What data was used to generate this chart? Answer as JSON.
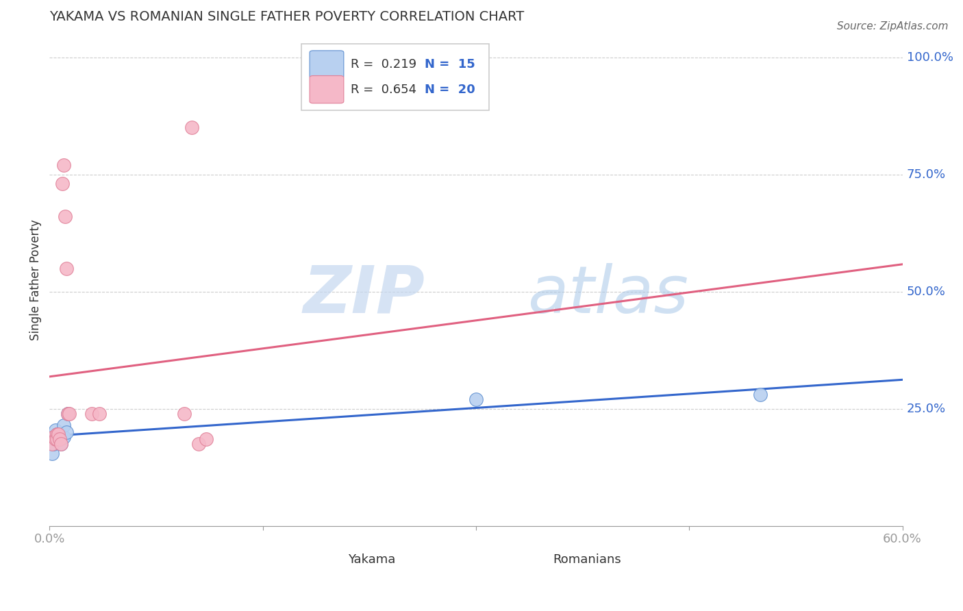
{
  "title": "YAKAMA VS ROMANIAN SINGLE FATHER POVERTY CORRELATION CHART",
  "source": "Source: ZipAtlas.com",
  "ylabel": "Single Father Poverty",
  "watermark_zip": "ZIP",
  "watermark_atlas": "atlas",
  "yakama": {
    "label": "Yakama",
    "color": "#b8d0f0",
    "edge_color": "#6090d0",
    "line_color": "#3366cc",
    "R": 0.219,
    "N": 15,
    "x": [
      0.002,
      0.003,
      0.004,
      0.005,
      0.005,
      0.006,
      0.007,
      0.008,
      0.009,
      0.01,
      0.01,
      0.012,
      0.013,
      0.3,
      0.5
    ],
    "y": [
      0.155,
      0.175,
      0.205,
      0.195,
      0.185,
      0.195,
      0.185,
      0.175,
      0.19,
      0.19,
      0.215,
      0.2,
      0.24,
      0.27,
      0.28
    ]
  },
  "romanians": {
    "label": "Romanians",
    "color": "#f5b8c8",
    "edge_color": "#e08098",
    "line_color": "#e06080",
    "R": 0.654,
    "N": 20,
    "x": [
      0.002,
      0.003,
      0.004,
      0.005,
      0.005,
      0.006,
      0.007,
      0.008,
      0.009,
      0.01,
      0.011,
      0.012,
      0.013,
      0.014,
      0.095,
      0.1,
      0.105,
      0.11,
      0.03,
      0.035
    ],
    "y": [
      0.175,
      0.19,
      0.185,
      0.195,
      0.185,
      0.195,
      0.185,
      0.175,
      0.73,
      0.77,
      0.66,
      0.55,
      0.24,
      0.24,
      0.24,
      0.85,
      0.175,
      0.185,
      0.24,
      0.24
    ]
  },
  "xlim": [
    0.0,
    0.6
  ],
  "ylim": [
    0.0,
    1.05
  ],
  "bg_color": "#ffffff",
  "grid_color": "#cccccc",
  "axis_label_color": "#3366cc",
  "text_color": "#333333"
}
